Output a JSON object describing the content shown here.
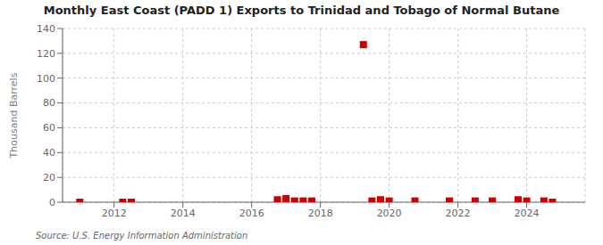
{
  "chart_data": {
    "type": "scatter",
    "title": "Monthly East Coast (PADD 1) Exports to Trinidad and Tobago of Normal Butane",
    "ylabel": "Thousand Barrels",
    "source": "Source: U.S. Energy Information Administration",
    "x": [
      2011.0,
      2012.25,
      2012.5,
      2016.75,
      2017.0,
      2017.25,
      2017.5,
      2017.75,
      2019.25,
      2019.5,
      2019.75,
      2020.0,
      2020.75,
      2021.75,
      2022.5,
      2023.0,
      2023.75,
      2024.0,
      2024.5,
      2024.75
    ],
    "values": [
      0,
      0,
      0,
      2,
      3,
      1,
      1,
      1,
      127,
      1,
      2,
      1,
      1,
      1,
      1,
      1,
      2,
      1,
      1,
      0
    ],
    "color": "#cc0000",
    "marker": "square",
    "xlim": [
      2010.5,
      2025.7
    ],
    "xticks": [
      2012,
      2014,
      2016,
      2018,
      2020,
      2022,
      2024
    ],
    "ylim": [
      0,
      140
    ],
    "yticks": [
      0,
      20,
      40,
      60,
      80,
      100,
      120,
      140
    ],
    "grid": true
  }
}
